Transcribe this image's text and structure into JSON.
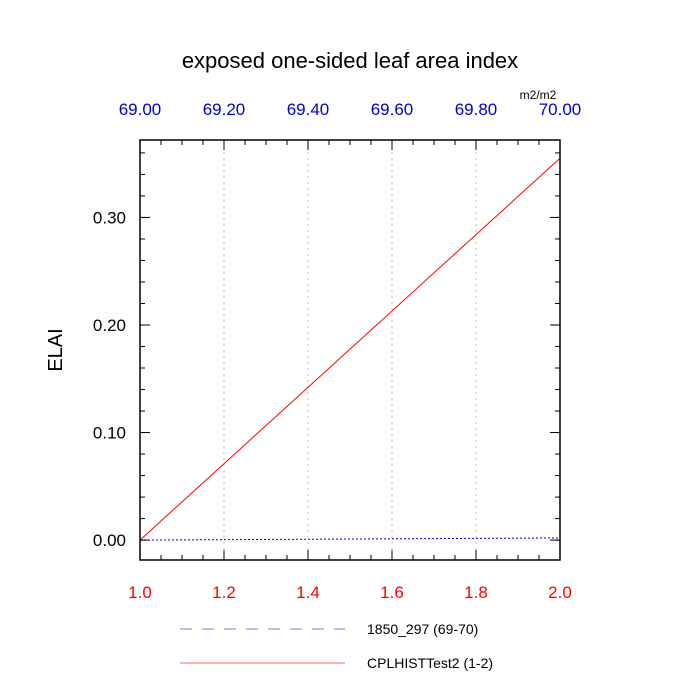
{
  "chart_data": {
    "type": "line",
    "title": "exposed one-sided leaf area index",
    "ylabel": "ELAI",
    "units": "m2/m2",
    "ylim": [
      -0.0185,
      0.372
    ],
    "y_ticks": [
      0.0,
      0.1,
      0.2,
      0.3
    ],
    "y_tick_labels": [
      "0.00",
      "0.10",
      "0.20",
      "0.30"
    ],
    "x_bottom": {
      "range": [
        1.0,
        2.0
      ],
      "ticks": [
        1.0,
        1.2,
        1.4,
        1.6,
        1.8,
        2.0
      ],
      "tick_labels": [
        "1.0",
        "1.2",
        "1.4",
        "1.6",
        "1.8",
        "2.0"
      ],
      "color": "#ff0000"
    },
    "x_top": {
      "range": [
        69.0,
        70.0
      ],
      "ticks": [
        69.0,
        69.2,
        69.4,
        69.6,
        69.8,
        70.0
      ],
      "tick_labels": [
        "69.00",
        "69.20",
        "69.40",
        "69.60",
        "69.80",
        "70.00"
      ],
      "color": "#0000cc"
    },
    "grid": "vertical dotted",
    "legend_placement": "bottom",
    "series": [
      {
        "name": "1850_297 (69-70)",
        "axis": "top",
        "color": "#0000cc",
        "style": "dashed",
        "x": [
          69.0,
          70.0
        ],
        "y": [
          0.0,
          0.002
        ]
      },
      {
        "name": "CPLHISTTest2 (1-2)",
        "axis": "bottom",
        "color": "#ff0000",
        "style": "solid",
        "x": [
          1.0,
          2.0
        ],
        "y": [
          0.0,
          0.355
        ]
      }
    ]
  }
}
